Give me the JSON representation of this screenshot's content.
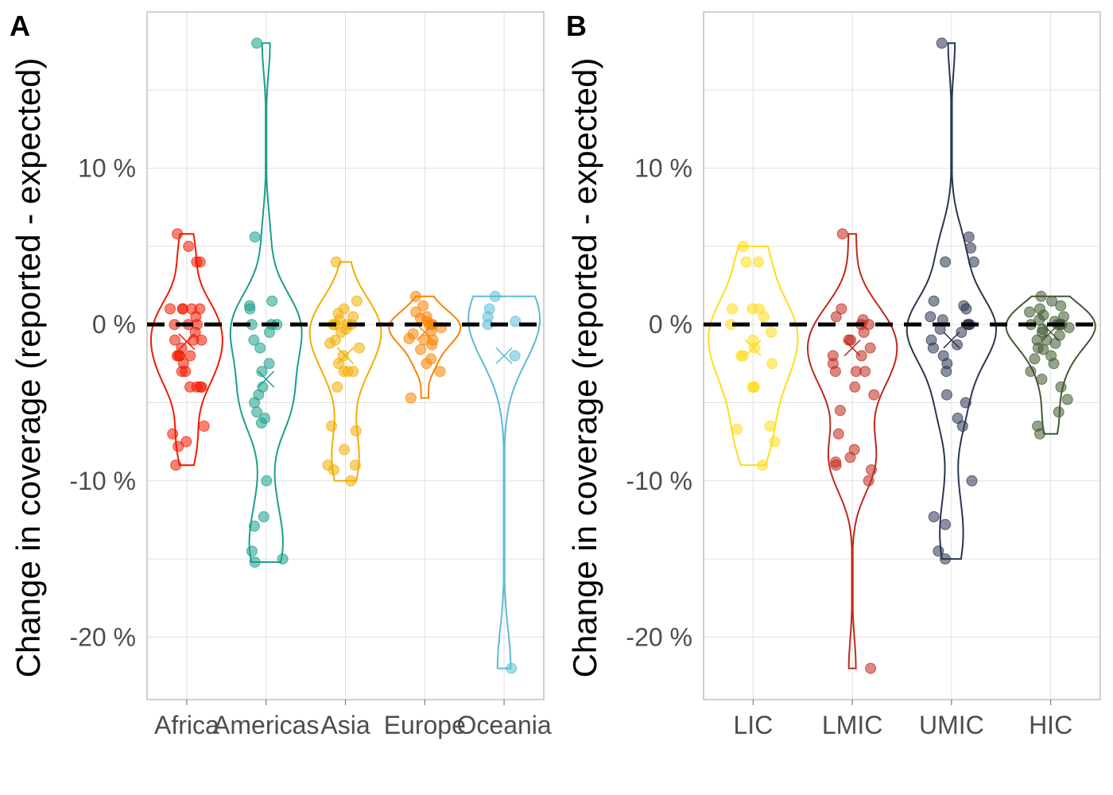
{
  "chart_data": [
    {
      "panel": "A",
      "type": "violin+jitter",
      "ylabel": "Change in coverage (reported - expected)",
      "y_ticks": [
        10,
        0,
        -10,
        -20
      ],
      "y_tick_labels": [
        "10 %",
        "0 %",
        "-10 %",
        "-20 %"
      ],
      "ylim": [
        -24,
        20
      ],
      "reference_line": 0,
      "grid": true,
      "groups": [
        {
          "name": "Africa",
          "color": "#F21A00",
          "mean": -1.1,
          "values": [
            5.8,
            5.0,
            4.0,
            4.0,
            1.0,
            1.0,
            1.0,
            1.0,
            1.0,
            0.5,
            0.0,
            0.0,
            0.0,
            -0.5,
            -1.0,
            -1.0,
            -1.0,
            -1.5,
            -2.0,
            -2.0,
            -2.0,
            -2.0,
            -2.5,
            -3.0,
            -3.0,
            -4.0,
            -4.0,
            -4.0,
            -4.0,
            -6.5,
            -7.0,
            -7.5,
            -7.8,
            -9.0
          ]
        },
        {
          "name": "Americas",
          "color": "#1A9E8C",
          "mean": -3.5,
          "values": [
            18.0,
            5.6,
            1.5,
            1.2,
            1.0,
            0.0,
            0.0,
            0.0,
            -0.5,
            -1.0,
            -1.5,
            -2.5,
            -3.0,
            -4.0,
            -4.5,
            -5.0,
            -5.6,
            -6.0,
            -6.3,
            -10.0,
            -12.3,
            -12.9,
            -14.5,
            -15.0,
            -15.2
          ]
        },
        {
          "name": "Asia",
          "color": "#F2AD00",
          "mean": -2.0,
          "values": [
            4.0,
            1.5,
            1.0,
            0.7,
            0.5,
            0.3,
            0.0,
            0.0,
            0.0,
            0.0,
            -0.3,
            -0.5,
            -1.0,
            -1.2,
            -1.5,
            -2.0,
            -2.5,
            -3.0,
            -3.0,
            -3.0,
            -4.0,
            -6.5,
            -6.8,
            -8.0,
            -9.0,
            -9.0,
            -9.3,
            -10.0
          ]
        },
        {
          "name": "Europe",
          "color": "#F98400",
          "mean": -0.5,
          "values": [
            1.8,
            1.2,
            0.8,
            0.5,
            0.4,
            0.2,
            0.0,
            0.0,
            0.0,
            -0.2,
            -0.4,
            -0.6,
            -0.9,
            -1.0,
            -1.0,
            -1.3,
            -1.6,
            -2.2,
            -2.5,
            -3.0,
            -4.7
          ]
        },
        {
          "name": "Oceania",
          "color": "#5BBCD6",
          "mean": -2.0,
          "values": [
            1.8,
            1.0,
            0.5,
            0.2,
            0.0,
            -2.0,
            -22.0
          ]
        }
      ]
    },
    {
      "panel": "B",
      "type": "violin+jitter",
      "ylabel": "Change in coverage (reported - expected)",
      "y_ticks": [
        10,
        0,
        -10,
        -20
      ],
      "y_tick_labels": [
        "10 %",
        "0 %",
        "-10 %",
        "-20 %"
      ],
      "ylim": [
        -24,
        20
      ],
      "reference_line": 0,
      "grid": true,
      "groups": [
        {
          "name": "LIC",
          "color": "#FFDD1A",
          "mean": -1.5,
          "values": [
            5.0,
            4.0,
            4.0,
            1.0,
            1.0,
            1.0,
            0.5,
            0.0,
            -0.5,
            -1.0,
            -1.5,
            -2.0,
            -2.0,
            -2.5,
            -4.0,
            -4.0,
            -4.0,
            -6.5,
            -6.7,
            -7.5,
            -9.0
          ]
        },
        {
          "name": "LMIC",
          "color": "#C0281C",
          "mean": -1.5,
          "values": [
            5.8,
            1.0,
            0.5,
            0.3,
            0.0,
            0.0,
            -0.5,
            -1.0,
            -1.0,
            -1.5,
            -2.0,
            -2.0,
            -2.5,
            -3.0,
            -3.0,
            -3.0,
            -4.0,
            -4.5,
            -5.5,
            -7.0,
            -8.0,
            -8.5,
            -8.8,
            -9.0,
            -9.3,
            -10.0,
            -22.0
          ]
        },
        {
          "name": "UMIC",
          "color": "#2A3550",
          "mean": -1.0,
          "values": [
            18.0,
            5.6,
            4.9,
            4.0,
            4.0,
            1.5,
            1.2,
            1.0,
            0.5,
            0.3,
            0.0,
            0.0,
            0.0,
            -0.3,
            -0.5,
            -1.0,
            -1.3,
            -1.5,
            -2.0,
            -2.5,
            -3.0,
            -4.5,
            -5.0,
            -6.0,
            -6.5,
            -10.0,
            -12.3,
            -12.8,
            -14.5,
            -15.0
          ]
        },
        {
          "name": "HIC",
          "color": "#3F5A30",
          "mean": -0.5,
          "values": [
            1.8,
            1.5,
            1.2,
            1.0,
            0.8,
            0.6,
            0.5,
            0.3,
            0.2,
            0.0,
            0.0,
            0.0,
            0.0,
            -0.2,
            -0.3,
            -0.5,
            -0.7,
            -1.0,
            -1.0,
            -1.2,
            -1.5,
            -1.6,
            -2.0,
            -2.2,
            -2.5,
            -3.0,
            -3.5,
            -4.0,
            -4.8,
            -5.6,
            -6.5,
            -7.0
          ]
        }
      ]
    }
  ]
}
